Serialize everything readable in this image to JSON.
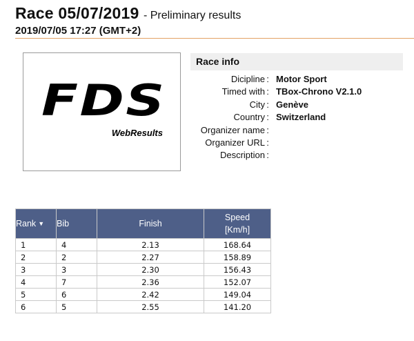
{
  "header": {
    "title": "Race 05/07/2019",
    "subtitle": "- Preliminary results",
    "datetime": "2019/07/05 17:27 (GMT+2)"
  },
  "logo": {
    "mark": "FDS",
    "sub": "WebResults"
  },
  "race_info": {
    "heading": "Race info",
    "rows": [
      {
        "label": "Dicipline",
        "value": "Motor Sport"
      },
      {
        "label": "Timed with",
        "value": "TBox-Chrono V2.1.0"
      },
      {
        "label": "City",
        "value": "Genève"
      },
      {
        "label": "Country",
        "value": "Switzerland"
      },
      {
        "label": "Organizer name",
        "value": ""
      },
      {
        "label": "Organizer URL",
        "value": ""
      },
      {
        "label": "Description",
        "value": ""
      }
    ],
    "separator": ":"
  },
  "results": {
    "headers": {
      "rank": "Rank",
      "bib": "Bib",
      "finish": "Finish",
      "speed": "Speed",
      "speed_unit": "[Km/h]"
    },
    "sort_icon": "sort-down-icon",
    "rows": [
      {
        "rank": "1",
        "bib": "4",
        "finish": "2.13",
        "speed": "168.64"
      },
      {
        "rank": "2",
        "bib": "2",
        "finish": "2.27",
        "speed": "158.89"
      },
      {
        "rank": "3",
        "bib": "3",
        "finish": "2.30",
        "speed": "156.43"
      },
      {
        "rank": "4",
        "bib": "7",
        "finish": "2.36",
        "speed": "152.07"
      },
      {
        "rank": "5",
        "bib": "6",
        "finish": "2.42",
        "speed": "149.04"
      },
      {
        "rank": "6",
        "bib": "5",
        "finish": "2.55",
        "speed": "141.20"
      }
    ]
  },
  "colors": {
    "table_header_bg": "#4e5f88",
    "info_header_bg": "#efefef",
    "header_rule": "#e3a063"
  }
}
